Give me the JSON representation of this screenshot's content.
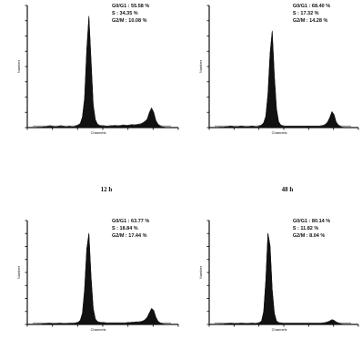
{
  "chart_data": [
    {
      "type": "area",
      "title": "",
      "xlabel": "Channels",
      "ylabel": "Number",
      "annotations": {
        "g0g1": "G0/G1 : 55.58 %",
        "s": "S : 34.35 %",
        "g2m": "G2/M : 10.08 %"
      },
      "series": [
        {
          "values": [
            0,
            0,
            1,
            1,
            1,
            2,
            2,
            3,
            4,
            3,
            2,
            2,
            3,
            4,
            3,
            2,
            2,
            3,
            2,
            2,
            4,
            6,
            10,
            28,
            78,
            210,
            300,
            180,
            60,
            20,
            8,
            5,
            4,
            4,
            3,
            3,
            4,
            4,
            5,
            4,
            4,
            5,
            6,
            5,
            5,
            6,
            7,
            6,
            7,
            8,
            9,
            12,
            16,
            22,
            40,
            52,
            40,
            18,
            8,
            4,
            2,
            1,
            0,
            0,
            0
          ]
        }
      ]
    },
    {
      "type": "area",
      "title": "",
      "xlabel": "Channels",
      "ylabel": "Number",
      "annotations": {
        "g0g1": "G0/G1 : 68.40 %",
        "s": "S : 17.32 %",
        "g2m": "G2/M : 14.28 %"
      },
      "series": [
        {
          "values": [
            0,
            0,
            1,
            1,
            1,
            2,
            2,
            3,
            3,
            2,
            2,
            2,
            3,
            3,
            2,
            2,
            2,
            3,
            3,
            2,
            2,
            4,
            6,
            12,
            30,
            90,
            200,
            260,
            140,
            50,
            15,
            6,
            4,
            3,
            3,
            3,
            3,
            3,
            3,
            3,
            3,
            3,
            3,
            3,
            3,
            3,
            3,
            3,
            3,
            3,
            4,
            5,
            8,
            14,
            26,
            42,
            34,
            14,
            6,
            3,
            1,
            0,
            0,
            0,
            0
          ]
        }
      ]
    },
    {
      "type": "area",
      "title": "12 h",
      "xlabel": "Channels",
      "ylabel": "Number",
      "annotations": {
        "g0g1": "G0/G1 : 63.77 %",
        "s": "S : 18.84 %",
        "g2m": "G2/M : 17.44 %"
      },
      "series": [
        {
          "values": [
            0,
            0,
            1,
            1,
            1,
            2,
            2,
            3,
            3,
            2,
            2,
            2,
            3,
            3,
            2,
            2,
            2,
            3,
            3,
            3,
            4,
            6,
            12,
            35,
            110,
            240,
            290,
            150,
            50,
            16,
            8,
            6,
            5,
            5,
            4,
            4,
            4,
            4,
            4,
            4,
            4,
            4,
            4,
            4,
            5,
            5,
            6,
            6,
            7,
            7,
            8,
            10,
            14,
            22,
            36,
            50,
            44,
            22,
            9,
            4,
            2,
            1,
            0,
            0,
            0
          ]
        }
      ]
    },
    {
      "type": "area",
      "title": "48 h",
      "xlabel": "Channels",
      "ylabel": "Number",
      "annotations": {
        "g0g1": "G0/G1 : 80.14 %",
        "s": "S : 11.82 %",
        "g2m": "G2/M : 8.04 %"
      },
      "series": [
        {
          "values": [
            0,
            0,
            1,
            1,
            1,
            2,
            2,
            3,
            3,
            2,
            2,
            2,
            3,
            3,
            2,
            2,
            2,
            3,
            3,
            2,
            3,
            5,
            10,
            40,
            140,
            290,
            250,
            110,
            35,
            10,
            5,
            4,
            3,
            3,
            3,
            3,
            3,
            3,
            3,
            3,
            3,
            3,
            3,
            3,
            3,
            3,
            3,
            3,
            3,
            3,
            3,
            4,
            5,
            7,
            10,
            14,
            12,
            7,
            4,
            2,
            1,
            0,
            0,
            0,
            0
          ]
        }
      ]
    }
  ]
}
